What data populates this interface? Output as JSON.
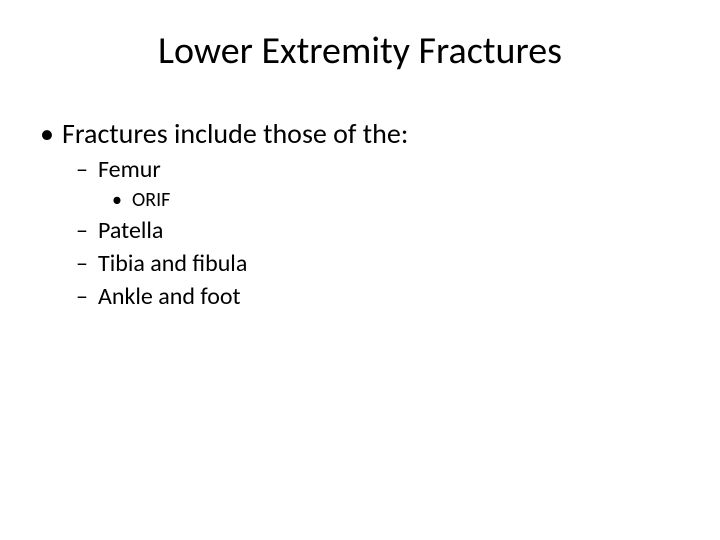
{
  "slide": {
    "title": "Lower Extremity Fractures",
    "title_fontsize": 38,
    "background_color": "#ffffff",
    "text_color": "#000000",
    "font_family": "Calibri",
    "items": [
      {
        "level": 1,
        "bullet": "•",
        "text": "Fractures include those of the:",
        "fontsize": 28
      },
      {
        "level": 2,
        "bullet": "–",
        "text": "Femur",
        "fontsize": 24
      },
      {
        "level": 3,
        "bullet": "•",
        "text": "ORIF",
        "fontsize": 20
      },
      {
        "level": 2,
        "bullet": "–",
        "text": "Patella",
        "fontsize": 24
      },
      {
        "level": 2,
        "bullet": "–",
        "text": "Tibia and fibula",
        "fontsize": 24
      },
      {
        "level": 2,
        "bullet": "–",
        "text": "Ankle and foot",
        "fontsize": 24
      }
    ]
  }
}
